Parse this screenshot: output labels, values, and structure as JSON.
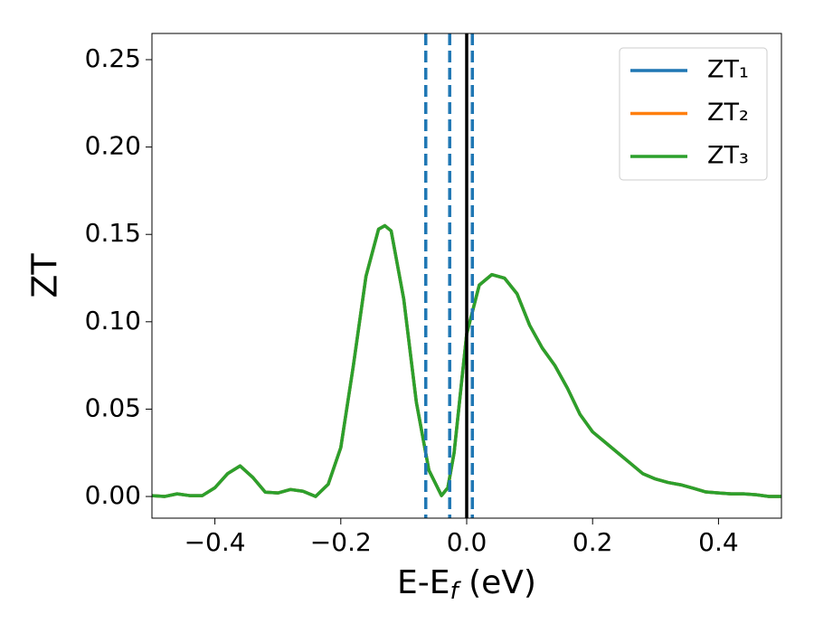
{
  "chart_data": {
    "type": "line",
    "x_label": {
      "main": "E-E",
      "sub": "f",
      "unit": " (eV)"
    },
    "y_label": "ZT",
    "x": [
      -0.5,
      -0.48,
      -0.46,
      -0.44,
      -0.42,
      -0.4,
      -0.38,
      -0.36,
      -0.34,
      -0.32,
      -0.3,
      -0.28,
      -0.26,
      -0.24,
      -0.22,
      -0.2,
      -0.18,
      -0.16,
      -0.14,
      -0.13,
      -0.12,
      -0.1,
      -0.08,
      -0.06,
      -0.04,
      -0.03,
      -0.02,
      0,
      0.02,
      0.04,
      0.06,
      0.08,
      0.1,
      0.12,
      0.14,
      0.16,
      0.18,
      0.2,
      0.22,
      0.24,
      0.26,
      0.28,
      0.3,
      0.32,
      0.34,
      0.36,
      0.38,
      0.4,
      0.42,
      0.44,
      0.46,
      0.48,
      0.5
    ],
    "series": [
      {
        "name": "ZT₁",
        "color": "#1f77b4",
        "values": [
          0.0005,
          0,
          0.0015,
          0.0005,
          0.0005,
          0.005,
          0.013,
          0.0175,
          0.011,
          0.0025,
          0.002,
          0.004,
          0.003,
          0,
          0.007,
          0.028,
          0.075,
          0.126,
          0.153,
          0.155,
          0.152,
          0.113,
          0.054,
          0.015,
          0.0005,
          0.005,
          0.025,
          0.093,
          0.121,
          0.127,
          0.125,
          0.116,
          0.098,
          0.085,
          0.075,
          0.062,
          0.047,
          0.037,
          0.031,
          0.025,
          0.019,
          0.013,
          0.01,
          0.008,
          0.0067,
          0.0047,
          0.0026,
          0.002,
          0.0015,
          0.0015,
          0.001,
          0,
          0
        ]
      },
      {
        "name": "ZT₂",
        "color": "#ff7f0e",
        "values": [
          0.0005,
          0,
          0.0015,
          0.0005,
          0.0005,
          0.005,
          0.013,
          0.0175,
          0.011,
          0.0025,
          0.002,
          0.004,
          0.003,
          0,
          0.007,
          0.028,
          0.075,
          0.126,
          0.153,
          0.155,
          0.152,
          0.113,
          0.054,
          0.015,
          0.0005,
          0.005,
          0.025,
          0.093,
          0.121,
          0.127,
          0.125,
          0.116,
          0.098,
          0.085,
          0.075,
          0.062,
          0.047,
          0.037,
          0.031,
          0.025,
          0.019,
          0.013,
          0.01,
          0.008,
          0.0067,
          0.0047,
          0.0026,
          0.002,
          0.0015,
          0.0015,
          0.001,
          0,
          0
        ]
      },
      {
        "name": "ZT₃",
        "color": "#2ca02c",
        "values": [
          0.0005,
          0,
          0.0015,
          0.0005,
          0.0005,
          0.005,
          0.013,
          0.0175,
          0.011,
          0.0025,
          0.002,
          0.004,
          0.003,
          0,
          0.007,
          0.028,
          0.075,
          0.126,
          0.153,
          0.155,
          0.152,
          0.113,
          0.054,
          0.015,
          0.0005,
          0.005,
          0.025,
          0.093,
          0.121,
          0.127,
          0.125,
          0.116,
          0.098,
          0.085,
          0.075,
          0.062,
          0.047,
          0.037,
          0.031,
          0.025,
          0.019,
          0.013,
          0.01,
          0.008,
          0.0067,
          0.0047,
          0.0026,
          0.002,
          0.0015,
          0.0015,
          0.001,
          0,
          0
        ]
      }
    ],
    "vlines": [
      {
        "x": -0.065,
        "color": "#1f77b4",
        "dashed": true
      },
      {
        "x": -0.027,
        "color": "#1f77b4",
        "dashed": true
      },
      {
        "x": 0.009,
        "color": "#1f77b4",
        "dashed": true
      },
      {
        "x": 0,
        "color": "#000000",
        "dashed": false
      }
    ],
    "xlim": [
      -0.5,
      0.5
    ],
    "ylim": [
      -0.0124,
      0.265
    ],
    "xticks": [
      {
        "value": -0.4,
        "label": "−0.4"
      },
      {
        "value": -0.2,
        "label": "−0.2"
      },
      {
        "value": 0,
        "label": "0.0"
      },
      0.2,
      0.4
    ],
    "yticks": [
      {
        "value": 0,
        "label": "0.00"
      },
      0.05,
      {
        "value": 0.1,
        "label": "0.10"
      },
      0.15,
      {
        "value": 0.2,
        "label": "0.20"
      },
      0.25
    ],
    "grid": false,
    "legend": "upper right"
  }
}
